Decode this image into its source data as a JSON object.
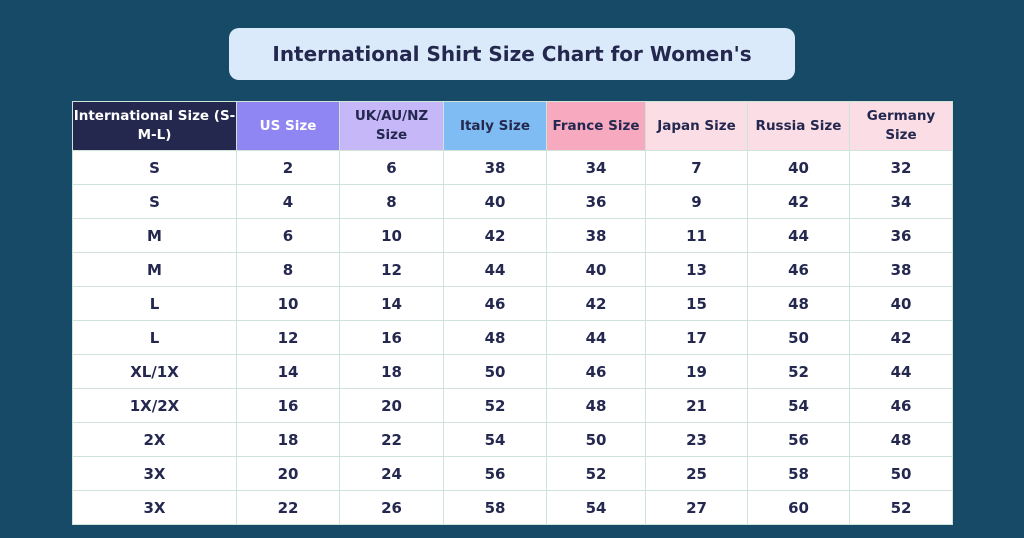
{
  "title": "International Shirt Size Chart for Women's",
  "colors": {
    "background": "#174a66",
    "title_box": "#dbeafb",
    "text": "#24284f",
    "header_bgs": [
      "#24284f",
      "#8f85f3",
      "#c6b8f8",
      "#7fbcf3",
      "#f7a9c0",
      "#fbdde5",
      "#fbdde5",
      "#fbdde5"
    ],
    "header_fgs": [
      "#ffffff",
      "#ffffff",
      "#24284f",
      "#24284f",
      "#24284f",
      "#24284f",
      "#24284f",
      "#24284f"
    ]
  },
  "chart_data": {
    "type": "table",
    "title": "International Shirt Size Chart for Women's",
    "columns": [
      "International Size (S-M-L)",
      "US Size",
      "UK/AU/NZ Size",
      "Italy Size",
      "France Size",
      "Japan Size",
      "Russia Size",
      "Germany Size"
    ],
    "rows": [
      [
        "S",
        "2",
        "6",
        "38",
        "34",
        "7",
        "40",
        "32"
      ],
      [
        "S",
        "4",
        "8",
        "40",
        "36",
        "9",
        "42",
        "34"
      ],
      [
        "M",
        "6",
        "10",
        "42",
        "38",
        "11",
        "44",
        "36"
      ],
      [
        "M",
        "8",
        "12",
        "44",
        "40",
        "13",
        "46",
        "38"
      ],
      [
        "L",
        "10",
        "14",
        "46",
        "42",
        "15",
        "48",
        "40"
      ],
      [
        "L",
        "12",
        "16",
        "48",
        "44",
        "17",
        "50",
        "42"
      ],
      [
        "XL/1X",
        "14",
        "18",
        "50",
        "46",
        "19",
        "52",
        "44"
      ],
      [
        "1X/2X",
        "16",
        "20",
        "52",
        "48",
        "21",
        "54",
        "46"
      ],
      [
        "2X",
        "18",
        "22",
        "54",
        "50",
        "23",
        "56",
        "48"
      ],
      [
        "3X",
        "20",
        "24",
        "56",
        "52",
        "25",
        "58",
        "50"
      ],
      [
        "3X",
        "22",
        "26",
        "58",
        "54",
        "27",
        "60",
        "52"
      ]
    ]
  }
}
